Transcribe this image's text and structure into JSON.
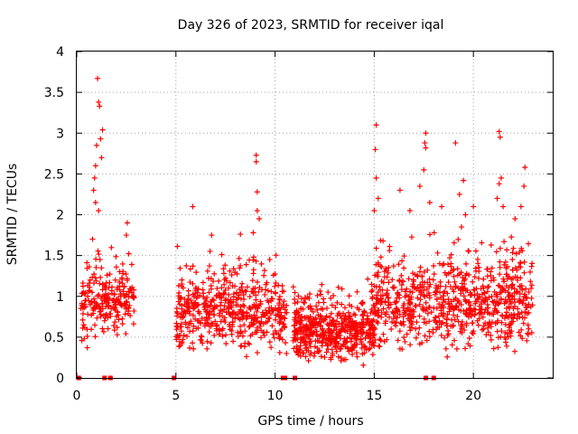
{
  "chart_data": {
    "type": "scatter",
    "title": "Day 326 of 2023, SRMTID for receiver iqal",
    "xlabel": "GPS time / hours",
    "ylabel": "SRMTID / TECUs",
    "xlim": [
      0,
      24
    ],
    "ylim": [
      0,
      4
    ],
    "xticks": [
      0,
      5,
      10,
      15,
      20
    ],
    "xtick_labels": [
      "0",
      "5",
      "10",
      "15",
      "20"
    ],
    "yticks": [
      0,
      0.5,
      1,
      1.5,
      2,
      2.5,
      3,
      3.5,
      4
    ],
    "ytick_labels": [
      "0",
      "0.5",
      "1",
      "1.5",
      "2",
      "2.5",
      "3",
      "3.5",
      "4"
    ],
    "grid": true,
    "marker": "+",
    "color": "#ff0000",
    "zero_markers_x": [
      0.1,
      1.4,
      1.7,
      4.9,
      10.4,
      10.5,
      11.0,
      17.6,
      18.0
    ],
    "clusters": [
      {
        "x": [
          0.2,
          2.9
        ],
        "center": 0.95,
        "spread": 0.35,
        "n": 230
      },
      {
        "x": [
          5.0,
          10.6
        ],
        "center": 0.8,
        "spread": 0.35,
        "n": 520
      },
      {
        "x": [
          10.9,
          15.0
        ],
        "center": 0.55,
        "spread": 0.25,
        "n": 520
      },
      {
        "x": [
          15.0,
          23.0
        ],
        "center": 0.9,
        "spread": 0.4,
        "n": 760
      }
    ],
    "highlights": [
      {
        "x": 1.05,
        "y": 3.67
      },
      {
        "x": 1.1,
        "y": 3.38
      },
      {
        "x": 1.15,
        "y": 3.33
      },
      {
        "x": 1.3,
        "y": 3.04
      },
      {
        "x": 1.2,
        "y": 2.93
      },
      {
        "x": 1.0,
        "y": 2.85
      },
      {
        "x": 0.95,
        "y": 2.6
      },
      {
        "x": 0.9,
        "y": 2.45
      },
      {
        "x": 1.25,
        "y": 2.7
      },
      {
        "x": 0.85,
        "y": 2.3
      },
      {
        "x": 0.95,
        "y": 2.15
      },
      {
        "x": 1.1,
        "y": 2.05
      },
      {
        "x": 2.55,
        "y": 1.9
      },
      {
        "x": 2.5,
        "y": 1.75
      },
      {
        "x": 5.85,
        "y": 2.1
      },
      {
        "x": 6.8,
        "y": 1.75
      },
      {
        "x": 9.05,
        "y": 2.73
      },
      {
        "x": 9.05,
        "y": 2.65
      },
      {
        "x": 9.1,
        "y": 2.28
      },
      {
        "x": 9.1,
        "y": 2.05
      },
      {
        "x": 9.2,
        "y": 1.95
      },
      {
        "x": 8.9,
        "y": 1.78
      },
      {
        "x": 15.1,
        "y": 3.1
      },
      {
        "x": 15.05,
        "y": 2.8
      },
      {
        "x": 15.1,
        "y": 2.45
      },
      {
        "x": 15.2,
        "y": 2.2
      },
      {
        "x": 15.0,
        "y": 2.05
      },
      {
        "x": 17.6,
        "y": 3.0
      },
      {
        "x": 17.55,
        "y": 2.88
      },
      {
        "x": 17.6,
        "y": 2.82
      },
      {
        "x": 17.5,
        "y": 2.55
      },
      {
        "x": 17.3,
        "y": 2.35
      },
      {
        "x": 17.8,
        "y": 2.15
      },
      {
        "x": 19.1,
        "y": 2.88
      },
      {
        "x": 19.5,
        "y": 2.42
      },
      {
        "x": 19.3,
        "y": 2.25
      },
      {
        "x": 19.6,
        "y": 2.0
      },
      {
        "x": 19.4,
        "y": 1.85
      },
      {
        "x": 21.3,
        "y": 3.02
      },
      {
        "x": 21.35,
        "y": 2.95
      },
      {
        "x": 21.4,
        "y": 2.45
      },
      {
        "x": 21.3,
        "y": 2.38
      },
      {
        "x": 21.2,
        "y": 2.2
      },
      {
        "x": 21.5,
        "y": 2.1
      },
      {
        "x": 22.6,
        "y": 2.58
      },
      {
        "x": 22.55,
        "y": 2.35
      },
      {
        "x": 22.4,
        "y": 2.1
      },
      {
        "x": 16.3,
        "y": 2.3
      },
      {
        "x": 16.8,
        "y": 2.05
      },
      {
        "x": 18.4,
        "y": 2.1
      },
      {
        "x": 20.0,
        "y": 2.1
      },
      {
        "x": 22.1,
        "y": 1.95
      }
    ]
  }
}
